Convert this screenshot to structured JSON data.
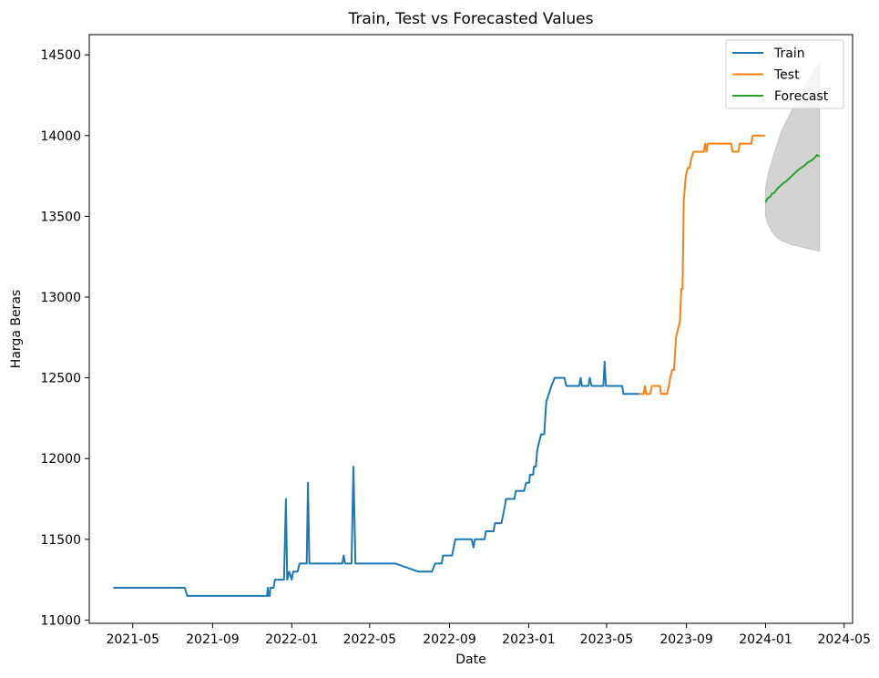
{
  "chart_data": {
    "type": "line",
    "title": "Train, Test vs Forecasted Values",
    "xlabel": "Date",
    "ylabel": "Harga Beras",
    "xlim": [
      "2021-02-23",
      "2024-05-14"
    ],
    "ylim": [
      10980,
      14625
    ],
    "x_ticks": [
      "2021-05",
      "2021-09",
      "2022-01",
      "2022-05",
      "2022-09",
      "2023-01",
      "2023-05",
      "2023-09",
      "2024-01",
      "2024-05"
    ],
    "y_ticks": [
      11000,
      11500,
      12000,
      12500,
      13000,
      13500,
      14000,
      14500
    ],
    "legend_position": "top-right",
    "grid": false,
    "series": [
      {
        "name": "Train",
        "color": "#1f77b4",
        "points": [
          [
            "2021-04-01",
            11200
          ],
          [
            "2021-07-20",
            11200
          ],
          [
            "2021-07-24",
            11150
          ],
          [
            "2021-11-24",
            11150
          ],
          [
            "2021-11-25",
            11200
          ],
          [
            "2021-11-26",
            11150
          ],
          [
            "2021-11-28",
            11150
          ],
          [
            "2021-11-29",
            11200
          ],
          [
            "2021-12-04",
            11200
          ],
          [
            "2021-12-06",
            11250
          ],
          [
            "2021-12-20",
            11250
          ],
          [
            "2021-12-23",
            11750
          ],
          [
            "2021-12-25",
            11250
          ],
          [
            "2021-12-28",
            11300
          ],
          [
            "2022-01-01",
            11250
          ],
          [
            "2022-01-03",
            11300
          ],
          [
            "2022-01-10",
            11300
          ],
          [
            "2022-01-13",
            11350
          ],
          [
            "2022-01-24",
            11350
          ],
          [
            "2022-01-26",
            11850
          ],
          [
            "2022-01-28",
            11350
          ],
          [
            "2022-03-20",
            11350
          ],
          [
            "2022-03-22",
            11400
          ],
          [
            "2022-03-24",
            11350
          ],
          [
            "2022-04-03",
            11350
          ],
          [
            "2022-04-06",
            11950
          ],
          [
            "2022-04-09",
            11350
          ],
          [
            "2022-06-10",
            11350
          ],
          [
            "2022-07-15",
            11300
          ],
          [
            "2022-08-05",
            11300
          ],
          [
            "2022-08-10",
            11350
          ],
          [
            "2022-08-20",
            11350
          ],
          [
            "2022-08-22",
            11400
          ],
          [
            "2022-09-05",
            11400
          ],
          [
            "2022-09-10",
            11500
          ],
          [
            "2022-10-05",
            11500
          ],
          [
            "2022-10-08",
            11450
          ],
          [
            "2022-10-10",
            11500
          ],
          [
            "2022-10-25",
            11500
          ],
          [
            "2022-10-27",
            11550
          ],
          [
            "2022-11-08",
            11550
          ],
          [
            "2022-11-10",
            11600
          ],
          [
            "2022-11-20",
            11600
          ],
          [
            "2022-11-25",
            11700
          ],
          [
            "2022-11-27",
            11750
          ],
          [
            "2022-12-10",
            11750
          ],
          [
            "2022-12-12",
            11800
          ],
          [
            "2022-12-25",
            11800
          ],
          [
            "2022-12-28",
            11850
          ],
          [
            "2023-01-02",
            11850
          ],
          [
            "2023-01-03",
            11900
          ],
          [
            "2023-01-08",
            11900
          ],
          [
            "2023-01-09",
            11950
          ],
          [
            "2023-01-12",
            11950
          ],
          [
            "2023-01-14",
            12050
          ],
          [
            "2023-01-17",
            12100
          ],
          [
            "2023-01-20",
            12150
          ],
          [
            "2023-01-25",
            12150
          ],
          [
            "2023-01-28",
            12350
          ],
          [
            "2023-02-01",
            12400
          ],
          [
            "2023-02-05",
            12450
          ],
          [
            "2023-02-10",
            12500
          ],
          [
            "2023-02-25",
            12500
          ],
          [
            "2023-02-28",
            12450
          ],
          [
            "2023-03-20",
            12450
          ],
          [
            "2023-03-22",
            12500
          ],
          [
            "2023-03-24",
            12450
          ],
          [
            "2023-04-03",
            12450
          ],
          [
            "2023-04-05",
            12500
          ],
          [
            "2023-04-08",
            12450
          ],
          [
            "2023-04-26",
            12450
          ],
          [
            "2023-04-28",
            12600
          ],
          [
            "2023-04-30",
            12450
          ],
          [
            "2023-05-25",
            12450
          ],
          [
            "2023-05-27",
            12400
          ],
          [
            "2023-06-20",
            12400
          ]
        ]
      },
      {
        "name": "Test",
        "color": "#ff7f0e",
        "points": [
          [
            "2023-06-20",
            12400
          ],
          [
            "2023-06-27",
            12400
          ],
          [
            "2023-06-29",
            12450
          ],
          [
            "2023-07-01",
            12400
          ],
          [
            "2023-07-07",
            12400
          ],
          [
            "2023-07-10",
            12450
          ],
          [
            "2023-07-22",
            12450
          ],
          [
            "2023-07-24",
            12400
          ],
          [
            "2023-08-02",
            12400
          ],
          [
            "2023-08-05",
            12450
          ],
          [
            "2023-08-07",
            12500
          ],
          [
            "2023-08-10",
            12550
          ],
          [
            "2023-08-13",
            12550
          ],
          [
            "2023-08-16",
            12750
          ],
          [
            "2023-08-19",
            12800
          ],
          [
            "2023-08-22",
            12850
          ],
          [
            "2023-08-24",
            13050
          ],
          [
            "2023-08-26",
            13050
          ],
          [
            "2023-08-28",
            13600
          ],
          [
            "2023-08-31",
            13750
          ],
          [
            "2023-09-03",
            13800
          ],
          [
            "2023-09-06",
            13800
          ],
          [
            "2023-09-08",
            13850
          ],
          [
            "2023-09-12",
            13900
          ],
          [
            "2023-09-28",
            13900
          ],
          [
            "2023-09-30",
            13950
          ],
          [
            "2023-10-02",
            13900
          ],
          [
            "2023-10-04",
            13950
          ],
          [
            "2023-11-09",
            13950
          ],
          [
            "2023-11-11",
            13900
          ],
          [
            "2023-11-20",
            13900
          ],
          [
            "2023-11-22",
            13950
          ],
          [
            "2023-12-10",
            13950
          ],
          [
            "2023-12-12",
            14000
          ],
          [
            "2023-12-31",
            14000
          ]
        ]
      },
      {
        "name": "Forecast",
        "color": "#2ca02c",
        "points": [
          [
            "2024-01-01",
            13585
          ],
          [
            "2024-01-03",
            13605
          ],
          [
            "2024-01-05",
            13615
          ],
          [
            "2024-01-08",
            13620
          ],
          [
            "2024-01-11",
            13640
          ],
          [
            "2024-01-14",
            13645
          ],
          [
            "2024-01-17",
            13660
          ],
          [
            "2024-01-20",
            13675
          ],
          [
            "2024-01-24",
            13690
          ],
          [
            "2024-01-28",
            13705
          ],
          [
            "2024-02-01",
            13715
          ],
          [
            "2024-02-05",
            13730
          ],
          [
            "2024-02-09",
            13745
          ],
          [
            "2024-02-13",
            13760
          ],
          [
            "2024-02-17",
            13775
          ],
          [
            "2024-02-21",
            13790
          ],
          [
            "2024-02-25",
            13800
          ],
          [
            "2024-03-01",
            13815
          ],
          [
            "2024-03-05",
            13830
          ],
          [
            "2024-03-09",
            13840
          ],
          [
            "2024-03-13",
            13850
          ],
          [
            "2024-03-17",
            13865
          ],
          [
            "2024-03-20",
            13880
          ],
          [
            "2024-03-24",
            13870
          ]
        ]
      }
    ],
    "forecast_interval": {
      "color": "#d3d3d3",
      "upper": [
        [
          "2024-01-01",
          13680
        ],
        [
          "2024-01-05",
          13760
        ],
        [
          "2024-01-10",
          13830
        ],
        [
          "2024-01-15",
          13900
        ],
        [
          "2024-01-20",
          13960
        ],
        [
          "2024-01-25",
          14020
        ],
        [
          "2024-02-01",
          14080
        ],
        [
          "2024-02-10",
          14150
        ],
        [
          "2024-02-20",
          14230
        ],
        [
          "2024-03-01",
          14300
        ],
        [
          "2024-03-10",
          14360
        ],
        [
          "2024-03-18",
          14420
        ],
        [
          "2024-03-24",
          14450
        ]
      ],
      "lower": [
        [
          "2024-01-01",
          13500
        ],
        [
          "2024-01-05",
          13450
        ],
        [
          "2024-01-10",
          13410
        ],
        [
          "2024-01-15",
          13385
        ],
        [
          "2024-01-20",
          13365
        ],
        [
          "2024-01-25",
          13350
        ],
        [
          "2024-02-01",
          13340
        ],
        [
          "2024-02-10",
          13325
        ],
        [
          "2024-02-20",
          13315
        ],
        [
          "2024-03-01",
          13305
        ],
        [
          "2024-03-10",
          13298
        ],
        [
          "2024-03-18",
          13290
        ],
        [
          "2024-03-24",
          13285
        ]
      ]
    }
  }
}
